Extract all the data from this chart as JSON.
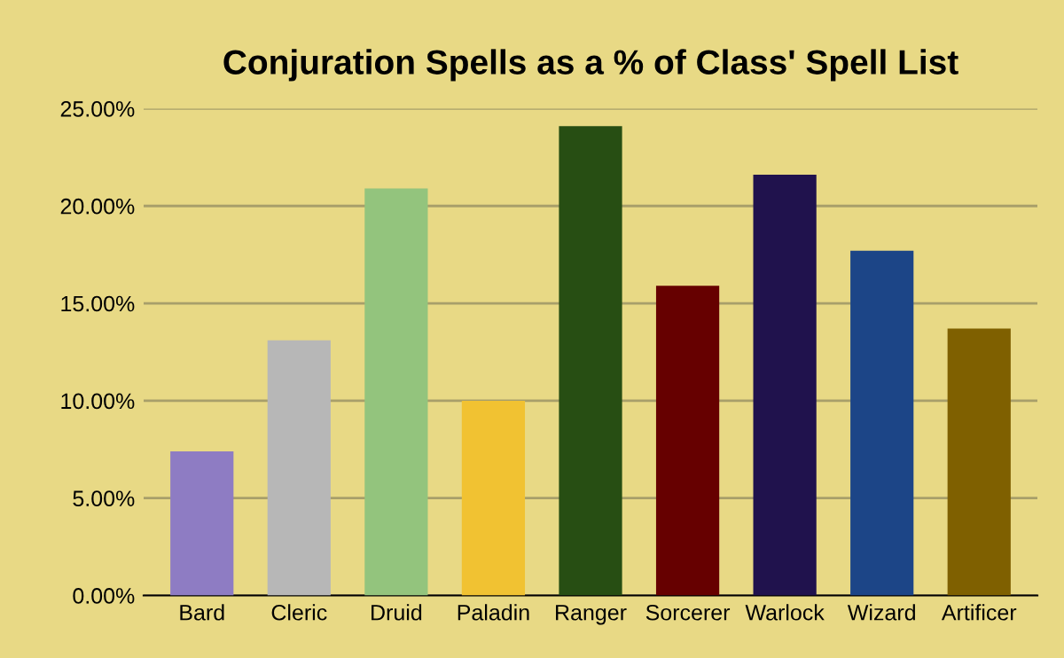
{
  "chart_data": {
    "type": "bar",
    "title": "Conjuration Spells as a % of Class' Spell List",
    "categories": [
      "Bard",
      "Cleric",
      "Druid",
      "Paladin",
      "Ranger",
      "Sorcerer",
      "Warlock",
      "Wizard",
      "Artificer"
    ],
    "values": [
      7.4,
      13.1,
      20.9,
      10.0,
      24.1,
      15.9,
      21.6,
      17.7,
      13.7
    ],
    "colors": [
      "#8e7cc3",
      "#b7b7b7",
      "#93c47d",
      "#f1c232",
      "#274e13",
      "#660000",
      "#20124d",
      "#1c4587",
      "#7f6000"
    ],
    "ylim": [
      0,
      25
    ],
    "yticks": [
      {
        "value": 0,
        "label": "0.00%"
      },
      {
        "value": 5,
        "label": "5.00%"
      },
      {
        "value": 10,
        "label": "10.00%"
      },
      {
        "value": 15,
        "label": "15.00%"
      },
      {
        "value": 20,
        "label": "20.00%"
      },
      {
        "value": 25,
        "label": "25.00%"
      }
    ],
    "grid": "y",
    "legend": false
  }
}
